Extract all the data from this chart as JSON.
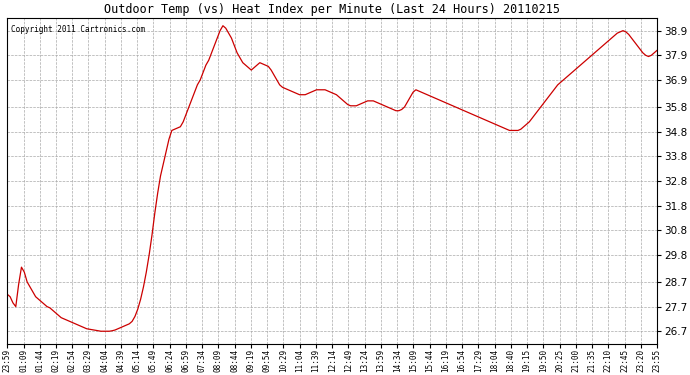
{
  "title": "Outdoor Temp (vs) Heat Index per Minute (Last 24 Hours) 20110215",
  "copyright": "Copyright 2011 Cartronics.com",
  "line_color": "#cc0000",
  "bg_color": "#ffffff",
  "grid_color": "#aaaaaa",
  "yticks": [
    26.7,
    27.7,
    28.7,
    29.8,
    30.8,
    31.8,
    32.8,
    33.8,
    34.8,
    35.8,
    36.9,
    37.9,
    38.9
  ],
  "ylim": [
    26.2,
    39.4
  ],
  "xtick_labels": [
    "23:59",
    "01:09",
    "01:44",
    "02:19",
    "02:54",
    "03:29",
    "04:04",
    "04:39",
    "05:14",
    "05:49",
    "06:24",
    "06:59",
    "07:34",
    "08:09",
    "08:44",
    "09:19",
    "09:54",
    "10:29",
    "11:04",
    "11:39",
    "12:14",
    "12:49",
    "13:24",
    "13:59",
    "14:34",
    "15:09",
    "15:44",
    "16:19",
    "16:54",
    "17:29",
    "18:04",
    "18:40",
    "19:15",
    "19:50",
    "20:25",
    "21:00",
    "21:35",
    "22:10",
    "22:45",
    "23:20",
    "23:55"
  ],
  "curve": [
    28.2,
    28.1,
    27.85,
    27.7,
    28.6,
    29.3,
    29.1,
    28.7,
    28.5,
    28.3,
    28.1,
    28.0,
    27.9,
    27.8,
    27.7,
    27.65,
    27.55,
    27.45,
    27.35,
    27.25,
    27.2,
    27.15,
    27.1,
    27.05,
    27.0,
    26.95,
    26.9,
    26.85,
    26.8,
    26.78,
    26.76,
    26.74,
    26.72,
    26.7,
    26.7,
    26.7,
    26.7,
    26.72,
    26.75,
    26.8,
    26.85,
    26.9,
    26.95,
    27.0,
    27.1,
    27.3,
    27.6,
    28.0,
    28.5,
    29.1,
    29.8,
    30.6,
    31.5,
    32.3,
    33.0,
    33.5,
    34.0,
    34.5,
    34.85,
    34.9,
    34.95,
    35.0,
    35.2,
    35.5,
    35.8,
    36.1,
    36.4,
    36.7,
    36.9,
    37.2,
    37.5,
    37.7,
    38.0,
    38.3,
    38.6,
    38.9,
    39.1,
    39.0,
    38.8,
    38.6,
    38.3,
    38.0,
    37.8,
    37.6,
    37.5,
    37.4,
    37.3,
    37.4,
    37.5,
    37.6,
    37.55,
    37.5,
    37.45,
    37.3,
    37.1,
    36.9,
    36.7,
    36.6,
    36.55,
    36.5,
    36.45,
    36.4,
    36.35,
    36.3,
    36.3,
    36.3,
    36.35,
    36.4,
    36.45,
    36.5,
    36.5,
    36.5,
    36.5,
    36.45,
    36.4,
    36.35,
    36.3,
    36.2,
    36.1,
    36.0,
    35.9,
    35.85,
    35.85,
    35.85,
    35.9,
    35.95,
    36.0,
    36.05,
    36.05,
    36.05,
    36.0,
    35.95,
    35.9,
    35.85,
    35.8,
    35.75,
    35.7,
    35.65,
    35.65,
    35.7,
    35.8,
    36.0,
    36.2,
    36.4,
    36.5,
    36.45,
    36.4,
    36.35,
    36.3,
    36.25,
    36.2,
    36.15,
    36.1,
    36.05,
    36.0,
    35.95,
    35.9,
    35.85,
    35.8,
    35.75,
    35.7,
    35.65,
    35.6,
    35.55,
    35.5,
    35.45,
    35.4,
    35.35,
    35.3,
    35.25,
    35.2,
    35.15,
    35.1,
    35.05,
    35.0,
    34.95,
    34.9,
    34.85,
    34.85,
    34.85,
    34.85,
    34.9,
    35.0,
    35.1,
    35.2,
    35.35,
    35.5,
    35.65,
    35.8,
    35.95,
    36.1,
    36.25,
    36.4,
    36.55,
    36.7,
    36.8,
    36.9,
    37.0,
    37.1,
    37.2,
    37.3,
    37.4,
    37.5,
    37.6,
    37.7,
    37.8,
    37.9,
    38.0,
    38.1,
    38.2,
    38.3,
    38.4,
    38.5,
    38.6,
    38.7,
    38.8,
    38.85,
    38.9,
    38.85,
    38.75,
    38.6,
    38.45,
    38.3,
    38.15,
    38.0,
    37.9,
    37.85,
    37.9,
    38.0,
    38.1
  ]
}
